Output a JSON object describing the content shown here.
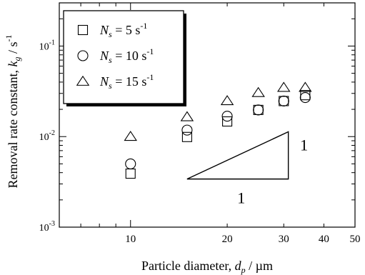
{
  "chart_data": {
    "type": "scatter",
    "title": "",
    "xscale": "log",
    "yscale": "log",
    "xlim": [
      6,
      50
    ],
    "ylim": [
      0.001,
      0.3
    ],
    "grid": false,
    "legend_position": "top-left",
    "xlabel": {
      "main": "Particle diameter, ",
      "var": "d",
      "sub": "p",
      "unit": " / µm"
    },
    "ylabel": {
      "main": "Removal rate constant, ",
      "var": "k",
      "sub": "g",
      "unit": " / s",
      "sup": "-1"
    },
    "xticks": [
      {
        "value": 10,
        "label": "10"
      },
      {
        "value": 20,
        "label": "20"
      },
      {
        "value": 30,
        "label": "30"
      },
      {
        "value": 40,
        "label": "40"
      },
      {
        "value": 50,
        "label": "50"
      }
    ],
    "yticks": [
      {
        "value": 0.001,
        "base": "10",
        "exp": "-3"
      },
      {
        "value": 0.01,
        "base": "10",
        "exp": "-2"
      },
      {
        "value": 0.1,
        "base": "10",
        "exp": "-1"
      }
    ],
    "series": [
      {
        "marker": "square",
        "legend": {
          "var": "N",
          "sub": "s",
          "eq": " =  5 s",
          "sup": "-1"
        },
        "x": [
          10,
          15,
          20,
          25,
          30,
          35
        ],
        "y": [
          0.0039,
          0.0099,
          0.0147,
          0.0197,
          0.0247,
          0.0287
        ]
      },
      {
        "marker": "circle",
        "legend": {
          "var": "N",
          "sub": "s",
          "eq": " = 10 s",
          "sup": "-1"
        },
        "x": [
          10,
          15,
          20,
          25,
          30,
          35
        ],
        "y": [
          0.005,
          0.0118,
          0.0168,
          0.0197,
          0.0247,
          0.027
        ]
      },
      {
        "marker": "triangle",
        "legend": {
          "var": "N",
          "sub": "s",
          "eq": " = 15 s",
          "sup": "-1"
        },
        "x": [
          10,
          15,
          20,
          25,
          30,
          35
        ],
        "y": [
          0.01,
          0.0165,
          0.0248,
          0.0305,
          0.0348,
          0.0348
        ]
      }
    ],
    "annotations": {
      "slope_triangle": {
        "x": [
          15,
          31
        ],
        "y": [
          0.0034,
          0.0113
        ],
        "horizontal_label": "1",
        "vertical_label": "1"
      }
    }
  }
}
